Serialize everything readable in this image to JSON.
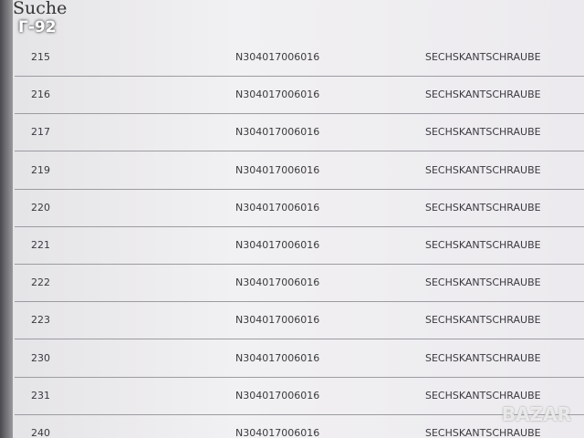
{
  "header": {
    "title": "Suche",
    "label": "Г-92"
  },
  "table": {
    "rows": [
      [
        "215",
        "N304017006016",
        "SECHSKANTSCHRAUBE"
      ],
      [
        "216",
        "N304017006016",
        "SECHSKANTSCHRAUBE"
      ],
      [
        "217",
        "N304017006016",
        "SECHSKANTSCHRAUBE"
      ],
      [
        "219",
        "N304017006016",
        "SECHSKANTSCHRAUBE"
      ],
      [
        "220",
        "N304017006016",
        "SECHSKANTSCHRAUBE"
      ],
      [
        "221",
        "N304017006016",
        "SECHSKANTSCHRAUBE"
      ],
      [
        "222",
        "N304017006016",
        "SECHSKANTSCHRAUBE"
      ],
      [
        "223",
        "N304017006016",
        "SECHSKANTSCHRAUBE"
      ],
      [
        "230",
        "N304017006016",
        "SECHSKANTSCHRAUBE"
      ],
      [
        "231",
        "N304017006016",
        "SECHSKANTSCHRAUBE"
      ],
      [
        "240",
        "N304017006016",
        "SECHSKANTSCHRAUBE"
      ]
    ]
  },
  "watermark": "BAZAR"
}
